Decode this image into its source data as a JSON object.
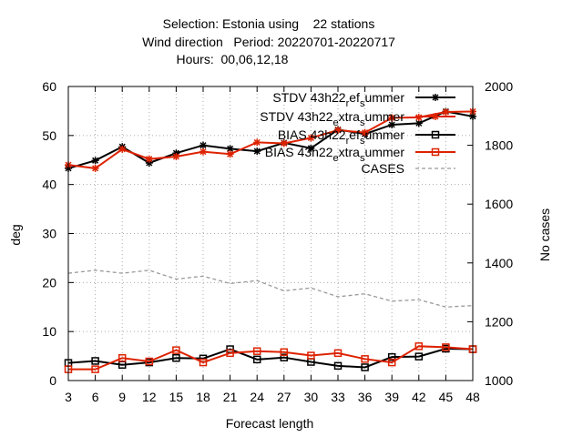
{
  "chart_data": {
    "type": "line",
    "title_lines": [
      "Selection: Estonia using    22 stations",
      "Wind direction   Period: 20220701-20220717",
      "Hours:  00,06,12,18"
    ],
    "xlabel": "Forecast length",
    "ylabel": "deg",
    "y2label": "No cases",
    "x": [
      3,
      6,
      9,
      12,
      15,
      18,
      21,
      24,
      27,
      30,
      33,
      36,
      39,
      42,
      45,
      48
    ],
    "xlim": [
      3,
      48
    ],
    "ylim": [
      0,
      60
    ],
    "y2lim": [
      1000,
      2000
    ],
    "yticks": [
      0,
      10,
      20,
      30,
      40,
      50,
      60
    ],
    "y2ticks": [
      1000,
      1200,
      1400,
      1600,
      1800,
      2000
    ],
    "grid": true,
    "legend_position": "top-right",
    "series": [
      {
        "name": "STDV 43h22_ref_summer",
        "legend_main": "STDV 43h22",
        "legend_sub1": "r",
        "legend_mid": "ef",
        "legend_sub2": "s",
        "legend_end": "ummer",
        "color": "#000000",
        "marker": "star",
        "axis": "y",
        "values": [
          43.3,
          44.9,
          47.7,
          44.4,
          46.4,
          48.0,
          47.3,
          46.8,
          48.5,
          47.4,
          51.2,
          50.3,
          52.2,
          52.5,
          54.9,
          53.9
        ]
      },
      {
        "name": "STDV 43h22_extra_summer",
        "legend_main": "STDV 43h22",
        "legend_sub1": "e",
        "legend_mid": "xtra",
        "legend_sub2": "s",
        "legend_end": "ummer",
        "color": "#dd2200",
        "marker": "star",
        "axis": "y",
        "values": [
          44.0,
          43.3,
          47.2,
          45.2,
          45.7,
          46.7,
          46.2,
          48.6,
          48.4,
          49.5,
          51.1,
          50.6,
          53.6,
          53.7,
          54.8,
          54.9
        ]
      },
      {
        "name": "BIAS 43h22_ref_summer",
        "legend_main": "BIAS 43h22",
        "legend_sub1": "r",
        "legend_mid": "ef",
        "legend_sub2": "s",
        "legend_end": "ummer",
        "color": "#000000",
        "marker": "square",
        "axis": "y",
        "values": [
          3.6,
          4.0,
          3.2,
          3.7,
          4.6,
          4.5,
          6.4,
          4.3,
          4.7,
          3.8,
          3.0,
          2.7,
          4.8,
          4.9,
          6.5,
          6.4
        ]
      },
      {
        "name": "BIAS 43h22_extra_summer",
        "legend_main": "BIAS 43h22",
        "legend_sub1": "e",
        "legend_mid": "xtra",
        "legend_sub2": "s",
        "legend_end": "ummer",
        "color": "#dd2200",
        "marker": "square",
        "axis": "y",
        "values": [
          2.3,
          2.3,
          4.6,
          3.9,
          6.2,
          3.7,
          5.6,
          6.0,
          5.8,
          5.1,
          5.6,
          4.4,
          3.7,
          7.0,
          6.8,
          6.4
        ]
      },
      {
        "name": "CASES",
        "color": "#999999",
        "marker": "none",
        "dashed": true,
        "axis": "y2",
        "values": [
          1365,
          1375,
          1365,
          1375,
          1345,
          1355,
          1330,
          1340,
          1305,
          1315,
          1285,
          1295,
          1270,
          1275,
          1250,
          1255
        ]
      }
    ]
  }
}
